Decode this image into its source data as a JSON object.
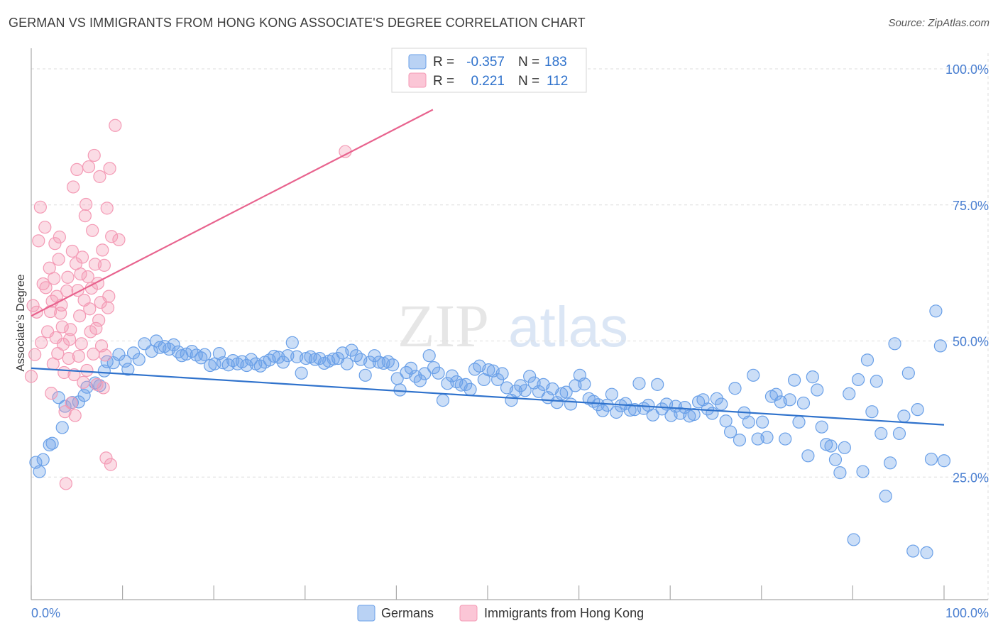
{
  "title": "GERMAN VS IMMIGRANTS FROM HONG KONG ASSOCIATE'S DEGREE CORRELATION CHART",
  "source": "Source: ZipAtlas.com",
  "watermark": {
    "zip": "ZIP",
    "atlas": "atlas"
  },
  "colors": {
    "blue": "#6aa0e8",
    "blue_line": "#2f72cc",
    "pink": "#f49ab5",
    "pink_line": "#e8638e",
    "grid": "#dddddd",
    "axis_text": "#4a7fd1"
  },
  "chart_data": {
    "type": "scatter",
    "title": "GERMAN VS IMMIGRANTS FROM HONG KONG ASSOCIATE'S DEGREE CORRELATION CHART",
    "ylabel": "Associate's Degree",
    "xlabel": "",
    "xlim": [
      0,
      100
    ],
    "ylim": [
      0,
      100
    ],
    "x_tick_labels": {
      "left": "0.0%",
      "right": "100.0%"
    },
    "y_tick_labels": [
      "100.0%",
      "75.0%",
      "50.0%",
      "25.0%"
    ],
    "y_tick_values": [
      100,
      75,
      50,
      25
    ],
    "stats": [
      {
        "r_label": "R =",
        "r": "-0.357",
        "n_label": "N =",
        "n": "183"
      },
      {
        "r_label": "R =",
        "r": "0.221",
        "n_label": "N =",
        "n": "112"
      }
    ],
    "series": [
      {
        "name": "Germans",
        "trend": {
          "x": [
            0,
            100
          ],
          "y": [
            45.0,
            34.6
          ]
        },
        "points": [
          [
            0.5,
            27.7
          ],
          [
            0.9,
            26
          ],
          [
            1.3,
            28.2
          ],
          [
            2,
            30.9
          ],
          [
            2.3,
            31.2
          ],
          [
            3,
            39.6
          ],
          [
            3.4,
            34.1
          ],
          [
            3.7,
            38
          ],
          [
            4.5,
            38.7
          ],
          [
            5.2,
            38.8
          ],
          [
            5.8,
            40
          ],
          [
            6.1,
            41.5
          ],
          [
            7,
            42.3
          ],
          [
            7.5,
            41.8
          ],
          [
            8,
            44.5
          ],
          [
            8.3,
            46.2
          ],
          [
            9,
            46
          ],
          [
            9.6,
            47.5
          ],
          [
            10.3,
            46.3
          ],
          [
            10.6,
            44.8
          ],
          [
            11.2,
            47.8
          ],
          [
            11.8,
            46.6
          ],
          [
            12.4,
            49.5
          ],
          [
            13.2,
            48.1
          ],
          [
            13.7,
            50
          ],
          [
            14.1,
            48.8
          ],
          [
            14.6,
            49
          ],
          [
            15.1,
            48.5
          ],
          [
            15.6,
            49.3
          ],
          [
            16.1,
            48
          ],
          [
            16.5,
            47.3
          ],
          [
            17,
            47.6
          ],
          [
            17.6,
            48.1
          ],
          [
            18.1,
            47.4
          ],
          [
            18.6,
            46.9
          ],
          [
            19,
            47.5
          ],
          [
            19.6,
            45.5
          ],
          [
            20.1,
            45.8
          ],
          [
            20.6,
            47.7
          ],
          [
            21,
            46
          ],
          [
            21.6,
            45.6
          ],
          [
            22.1,
            46.4
          ],
          [
            22.6,
            45.8
          ],
          [
            23.1,
            46.2
          ],
          [
            23.6,
            45.5
          ],
          [
            24.1,
            46.6
          ],
          [
            24.6,
            45.8
          ],
          [
            25.1,
            45.4
          ],
          [
            25.6,
            46.1
          ],
          [
            26.1,
            46.5
          ],
          [
            26.6,
            47.2
          ],
          [
            27.1,
            47
          ],
          [
            27.6,
            46.1
          ],
          [
            28.1,
            47.3
          ],
          [
            28.6,
            49.7
          ],
          [
            29.1,
            47.1
          ],
          [
            29.6,
            44.1
          ],
          [
            30.1,
            46.8
          ],
          [
            30.6,
            47.1
          ],
          [
            31.1,
            46.6
          ],
          [
            31.6,
            46.8
          ],
          [
            32.1,
            45.9
          ],
          [
            32.6,
            46.3
          ],
          [
            33.1,
            46.7
          ],
          [
            33.6,
            46.8
          ],
          [
            34.1,
            47.8
          ],
          [
            34.6,
            45.8
          ],
          [
            35.1,
            48.3
          ],
          [
            35.6,
            47.3
          ],
          [
            36.1,
            46.6
          ],
          [
            36.6,
            43.7
          ],
          [
            37.1,
            46.1
          ],
          [
            37.6,
            47.3
          ],
          [
            38.1,
            46.1
          ],
          [
            38.6,
            45.9
          ],
          [
            39.1,
            46.2
          ],
          [
            39.6,
            45.6
          ],
          [
            40.1,
            43.1
          ],
          [
            40.4,
            41
          ],
          [
            41.1,
            44.2
          ],
          [
            41.6,
            45
          ],
          [
            42.1,
            43.5
          ],
          [
            42.6,
            42.7
          ],
          [
            43.1,
            44
          ],
          [
            43.6,
            47.3
          ],
          [
            44.1,
            45.1
          ],
          [
            44.6,
            44.1
          ],
          [
            45.1,
            39.1
          ],
          [
            45.6,
            42.2
          ],
          [
            46.1,
            43.6
          ],
          [
            46.6,
            42.5
          ],
          [
            47.1,
            41.9
          ],
          [
            47.6,
            42
          ],
          [
            48.1,
            41.1
          ],
          [
            48.6,
            44.8
          ],
          [
            49.1,
            45.4
          ],
          [
            49.6,
            42.9
          ],
          [
            50.1,
            44.7
          ],
          [
            50.6,
            44.5
          ],
          [
            51.1,
            42.9
          ],
          [
            51.6,
            44
          ],
          [
            52.1,
            41.4
          ],
          [
            52.6,
            39.1
          ],
          [
            53.1,
            40.8
          ],
          [
            53.6,
            41.8
          ],
          [
            54.1,
            40.9
          ],
          [
            54.6,
            43.5
          ],
          [
            55.1,
            42.3
          ],
          [
            55.6,
            40.7
          ],
          [
            56.1,
            42
          ],
          [
            56.6,
            39.6
          ],
          [
            57.1,
            41.2
          ],
          [
            57.6,
            38.7
          ],
          [
            58.1,
            40.3
          ],
          [
            58.6,
            40.6
          ],
          [
            59.1,
            38.4
          ],
          [
            59.6,
            41.8
          ],
          [
            60.1,
            43.7
          ],
          [
            60.6,
            42.1
          ],
          [
            61.1,
            39.4
          ],
          [
            61.6,
            38.9
          ],
          [
            62.1,
            38.3
          ],
          [
            62.6,
            37.2
          ],
          [
            63.1,
            38.2
          ],
          [
            63.6,
            40.2
          ],
          [
            64.1,
            36.9
          ],
          [
            64.6,
            38.1
          ],
          [
            65.1,
            38.5
          ],
          [
            65.6,
            37.3
          ],
          [
            66.1,
            37.4
          ],
          [
            66.6,
            42.2
          ],
          [
            67.1,
            37.6
          ],
          [
            67.6,
            38.2
          ],
          [
            68.1,
            36.4
          ],
          [
            68.6,
            42
          ],
          [
            69.1,
            37.5
          ],
          [
            69.6,
            38.4
          ],
          [
            70.1,
            36.3
          ],
          [
            70.6,
            38
          ],
          [
            71.1,
            36.7
          ],
          [
            71.6,
            37.8
          ],
          [
            72.1,
            36.2
          ],
          [
            72.6,
            36.5
          ],
          [
            73.1,
            38.8
          ],
          [
            73.6,
            39.2
          ],
          [
            74.1,
            37.5
          ],
          [
            74.6,
            36.7
          ],
          [
            75.1,
            39.4
          ],
          [
            75.6,
            38.4
          ],
          [
            76.1,
            35.3
          ],
          [
            76.6,
            33.3
          ],
          [
            77.1,
            41.3
          ],
          [
            77.6,
            31.8
          ],
          [
            78.1,
            36.8
          ],
          [
            78.6,
            35.1
          ],
          [
            79.1,
            43.7
          ],
          [
            79.6,
            32
          ],
          [
            80.1,
            35.1
          ],
          [
            80.6,
            32.3
          ],
          [
            81.1,
            39.8
          ],
          [
            81.6,
            40.2
          ],
          [
            82.1,
            38.8
          ],
          [
            82.6,
            32
          ],
          [
            83.1,
            39.2
          ],
          [
            83.6,
            42.8
          ],
          [
            84.1,
            35.1
          ],
          [
            84.6,
            38.6
          ],
          [
            85.1,
            28.9
          ],
          [
            85.6,
            43.4
          ],
          [
            86.1,
            41
          ],
          [
            86.6,
            34.2
          ],
          [
            87.1,
            31
          ],
          [
            87.6,
            30.7
          ],
          [
            88.1,
            28.2
          ],
          [
            88.6,
            25.8
          ],
          [
            89.1,
            30.4
          ],
          [
            89.6,
            40.3
          ],
          [
            90.1,
            13.5
          ],
          [
            90.6,
            42.9
          ],
          [
            91.1,
            26
          ],
          [
            91.6,
            46.5
          ],
          [
            92.1,
            37
          ],
          [
            92.6,
            42.6
          ],
          [
            93.1,
            33
          ],
          [
            93.6,
            21.5
          ],
          [
            94.1,
            27.6
          ],
          [
            94.6,
            49.5
          ],
          [
            95.1,
            33
          ],
          [
            95.6,
            36.2
          ],
          [
            96.1,
            44.1
          ],
          [
            96.6,
            11.4
          ],
          [
            97.1,
            37.4
          ],
          [
            98.1,
            11.1
          ],
          [
            98.6,
            28.3
          ],
          [
            99.1,
            55.5
          ],
          [
            99.6,
            49.1
          ],
          [
            100,
            28
          ]
        ]
      },
      {
        "name": "Immigrants from Hong Kong",
        "trend": {
          "x": [
            0,
            44
          ],
          "y": [
            54.6,
            92.5
          ]
        },
        "points": [
          [
            0,
            43.5
          ],
          [
            0.2,
            56.5
          ],
          [
            0.4,
            47.5
          ],
          [
            0.6,
            55.3
          ],
          [
            0.8,
            68.4
          ],
          [
            1,
            74.6
          ],
          [
            1.1,
            49.7
          ],
          [
            1.3,
            60.5
          ],
          [
            1.5,
            70.9
          ],
          [
            1.6,
            59.8
          ],
          [
            1.8,
            51.7
          ],
          [
            2,
            63.4
          ],
          [
            2.1,
            55.4
          ],
          [
            2.2,
            40.4
          ],
          [
            2.3,
            57.3
          ],
          [
            2.4,
            45.8
          ],
          [
            2.5,
            61.5
          ],
          [
            2.6,
            67.9
          ],
          [
            2.7,
            50.6
          ],
          [
            2.8,
            58.2
          ],
          [
            2.9,
            47.7
          ],
          [
            3,
            65
          ],
          [
            3.1,
            69.1
          ],
          [
            3.2,
            55.1
          ],
          [
            3.3,
            56.6
          ],
          [
            3.4,
            52.6
          ],
          [
            3.5,
            49.4
          ],
          [
            3.6,
            44.2
          ],
          [
            3.7,
            37
          ],
          [
            3.8,
            23.8
          ],
          [
            3.9,
            59.2
          ],
          [
            4,
            61.7
          ],
          [
            4.1,
            46.8
          ],
          [
            4.2,
            50.3
          ],
          [
            4.3,
            52.1
          ],
          [
            4.4,
            38.6
          ],
          [
            4.5,
            66.5
          ],
          [
            4.6,
            78.3
          ],
          [
            4.7,
            43.8
          ],
          [
            4.8,
            36.3
          ],
          [
            4.9,
            64.2
          ],
          [
            5,
            81.5
          ],
          [
            5.1,
            59.3
          ],
          [
            5.2,
            47.2
          ],
          [
            5.3,
            54.6
          ],
          [
            5.4,
            62.3
          ],
          [
            5.5,
            49.5
          ],
          [
            5.6,
            65.4
          ],
          [
            5.7,
            42.4
          ],
          [
            5.8,
            57.5
          ],
          [
            5.9,
            73
          ],
          [
            6,
            75.1
          ],
          [
            6.1,
            44.6
          ],
          [
            6.2,
            61.8
          ],
          [
            6.3,
            82
          ],
          [
            6.4,
            55.9
          ],
          [
            6.5,
            51.7
          ],
          [
            6.6,
            59.7
          ],
          [
            6.7,
            70.3
          ],
          [
            6.8,
            47.6
          ],
          [
            6.9,
            84.1
          ],
          [
            7,
            64.1
          ],
          [
            7.1,
            52.3
          ],
          [
            7.2,
            42
          ],
          [
            7.3,
            60.6
          ],
          [
            7.4,
            53.8
          ],
          [
            7.5,
            80.2
          ],
          [
            7.6,
            57.1
          ],
          [
            7.7,
            49.1
          ],
          [
            7.8,
            66.7
          ],
          [
            7.9,
            41.4
          ],
          [
            8,
            63.9
          ],
          [
            8.1,
            47.4
          ],
          [
            8.2,
            28.5
          ],
          [
            8.3,
            74.4
          ],
          [
            8.4,
            56.1
          ],
          [
            8.5,
            58.2
          ],
          [
            8.6,
            81.7
          ],
          [
            8.7,
            27.3
          ],
          [
            8.8,
            69.2
          ],
          [
            9.2,
            89.6
          ],
          [
            9.6,
            68.6
          ],
          [
            34.4,
            84.8
          ]
        ]
      }
    ]
  },
  "legend": [
    {
      "label": "Germans",
      "color": "#6aa0e8"
    },
    {
      "label": "Immigrants from Hong Kong",
      "color": "#f49ab5"
    }
  ]
}
